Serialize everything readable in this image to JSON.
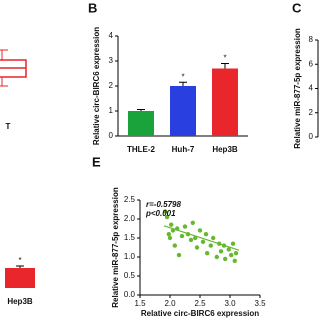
{
  "chart_data": [
    {
      "type": "box",
      "categories": [
        "T"
      ],
      "color": "#e8262b"
    },
    {
      "type": "bar",
      "panel": "B",
      "ylabel": "Relative circ-BIRC6 expression",
      "categories": [
        "THLE-2",
        "Huh-7",
        "Hep3B"
      ],
      "values": [
        1.0,
        2.0,
        2.7
      ],
      "errors": [
        0.06,
        0.15,
        0.2
      ],
      "colors": [
        "#1aa33a",
        "#2a3fe0",
        "#e8262b"
      ],
      "significance": [
        null,
        "*",
        "*"
      ],
      "ylim": [
        0,
        4
      ],
      "yticks": [
        0,
        1,
        2,
        3,
        4
      ]
    },
    {
      "type": "axis",
      "panel": "C",
      "ylabel": "Relative miR-877-5p expression",
      "ylim": [
        0,
        8
      ],
      "yticks": [
        0,
        2,
        4,
        6,
        8
      ]
    },
    {
      "type": "bar",
      "categories": [
        "Hep3B"
      ],
      "colors": [
        "#e8262b"
      ],
      "significance": [
        "*"
      ]
    },
    {
      "type": "scatter",
      "panel": "E",
      "xlabel": "Relative circ-BIRC6 expression",
      "ylabel": "Relative miR-877-5p expression",
      "annotations": [
        "r=-0.5798",
        "p<0.001"
      ],
      "color": "#66b82e",
      "x": [
        1.92,
        1.95,
        1.98,
        2.02,
        2.05,
        2.08,
        2.12,
        2.2,
        2.25,
        2.3,
        2.35,
        2.38,
        2.42,
        2.45,
        2.5,
        2.55,
        2.6,
        2.62,
        2.68,
        2.72,
        2.78,
        2.82,
        2.85,
        2.9,
        2.92,
        2.98,
        3.02,
        3.05,
        3.08,
        3.1,
        2.15,
        2.0
      ],
      "y": [
        2.2,
        2.05,
        1.6,
        1.85,
        1.7,
        1.3,
        1.75,
        1.55,
        1.8,
        1.6,
        1.45,
        1.9,
        1.5,
        1.25,
        1.7,
        1.4,
        1.6,
        1.1,
        1.3,
        1.5,
        1.0,
        1.35,
        1.15,
        1.3,
        0.95,
        1.2,
        1.05,
        1.35,
        0.9,
        1.1,
        1.05,
        1.5
      ],
      "trendline": {
        "x": [
          1.9,
          3.15
        ],
        "y": [
          1.82,
          1.18
        ]
      },
      "xlim": [
        1.5,
        3.5
      ],
      "xticks": [
        1.5,
        {
          "value": 2,
          "label": "2.0"
        },
        2.5,
        {
          "value": 3,
          "label": "3.0"
        },
        3.5
      ],
      "ylim": [
        0,
        2.5
      ],
      "yticks": [
        {
          "value": 0,
          "label": "0.0"
        },
        0.5,
        {
          "value": 1,
          "label": "1.0"
        },
        1.5,
        {
          "value": 2,
          "label": "2.0"
        },
        2.5
      ]
    }
  ]
}
